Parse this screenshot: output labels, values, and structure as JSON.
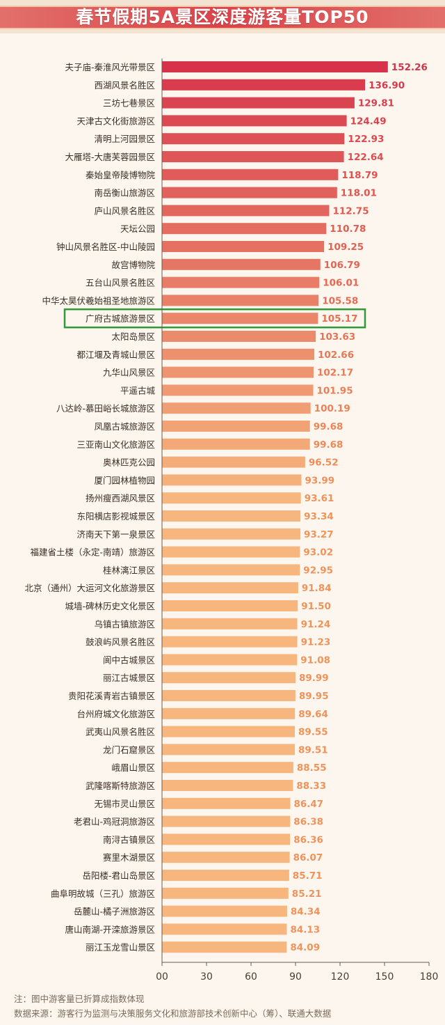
{
  "chart_data": {
    "type": "bar",
    "orientation": "horizontal",
    "title": "春节假期5A景区深度游客量TOP50",
    "categories": [
      "夫子庙-秦淮风光带景区",
      "西湖风景名胜区",
      "三坊七巷景区",
      "天津古文化街旅游区",
      "清明上河园景区",
      "大雁塔-大唐芙蓉园景区",
      "秦始皇帝陵博物院",
      "南岳衡山旅游区",
      "庐山风景名胜区",
      "天坛公园",
      "钟山风景名胜区-中山陵园",
      "故宫博物院",
      "五台山风景名胜区",
      "中华太昊伏羲始祖圣地旅游区",
      "广府古城旅游景区",
      "太阳岛景区",
      "都江堰及青城山景区",
      "九华山风景区",
      "平遥古城",
      "八达岭-慕田峪长城旅游区",
      "凤凰古城旅游区",
      "三亚南山文化旅游区",
      "奥林匹克公园",
      "厦门园林植物园",
      "扬州瘦西湖风景区",
      "东阳横店影视城景区",
      "济南天下第一泉景区",
      "福建省土楼（永定-南靖）旅游区",
      "桂林漓江景区",
      "北京（通州）大运河文化旅游景区",
      "城墙-碑林历史文化景区",
      "乌镇古镇旅游区",
      "鼓浪屿风景名胜区",
      "阆中古城景区",
      "丽江古城景区",
      "贵阳花溪青岩古镇景区",
      "台州府城文化旅游区",
      "武夷山风景名胜区",
      "龙门石窟景区",
      "峨眉山景区",
      "武隆喀斯特旅游区",
      "无锡市灵山景区",
      "老君山-鸡冠洞旅游区",
      "南浔古镇景区",
      "赛里木湖景区",
      "岳阳楼-君山岛景区",
      "曲阜明故城（三孔）旅游区",
      "岳麓山-橘子洲旅游区",
      "唐山南湖-开滦旅游景区",
      "丽江玉龙雪山景区"
    ],
    "values": [
      152.26,
      136.9,
      129.81,
      124.49,
      122.93,
      122.64,
      118.79,
      118.01,
      112.75,
      110.78,
      109.25,
      106.79,
      106.01,
      105.58,
      105.17,
      103.63,
      102.66,
      102.17,
      101.95,
      100.19,
      99.68,
      99.68,
      96.52,
      93.99,
      93.61,
      93.34,
      93.27,
      93.02,
      92.95,
      91.84,
      91.5,
      91.24,
      91.23,
      91.08,
      89.99,
      89.95,
      89.64,
      89.55,
      89.51,
      88.55,
      88.33,
      86.47,
      86.38,
      86.36,
      86.07,
      85.71,
      85.21,
      84.34,
      84.13,
      84.09
    ],
    "value_labels": [
      "152.26",
      "136.90",
      "129.81",
      "124.49",
      "122.93",
      "122.64",
      "118.79",
      "118.01",
      "112.75",
      "110.78",
      "109.25",
      "106.79",
      "106.01",
      "105.58",
      "105.17",
      "103.63",
      "102.66",
      "102.17",
      "101.95",
      "100.19",
      "99.68",
      "99.68",
      "96.52",
      "93.99",
      "93.61",
      "93.34",
      "93.27",
      "93.02",
      "92.95",
      "91.84",
      "91.50",
      "91.24",
      "91.23",
      "91.08",
      "89.99",
      "89.95",
      "89.64",
      "89.55",
      "89.51",
      "88.55",
      "88.33",
      "86.47",
      "86.38",
      "86.36",
      "86.07",
      "85.71",
      "85.21",
      "84.34",
      "84.13",
      "84.09"
    ],
    "xlim": [
      0,
      180
    ],
    "xticks": [
      0,
      30,
      60,
      90,
      120,
      150,
      180
    ],
    "xtick_labels": [
      "00",
      "30",
      "60",
      "90",
      "120",
      "150",
      "180"
    ],
    "highlighted_category": "广府古城旅游景区",
    "grid": false,
    "colors": {
      "bar_top": "#d6334a",
      "bar_bottom": "#f6b67d",
      "label_top": "#d6334a",
      "label_bottom": "#f0935a",
      "highlight_box": "#2f9a3a",
      "axis": "#6b5a4c"
    }
  },
  "footer": {
    "note": "注：图中游客量已折算成指数体现",
    "source": "数据来源：游客行为监测与决策服务文化和旅游部技术创新中心（筹）、联通大数据"
  }
}
